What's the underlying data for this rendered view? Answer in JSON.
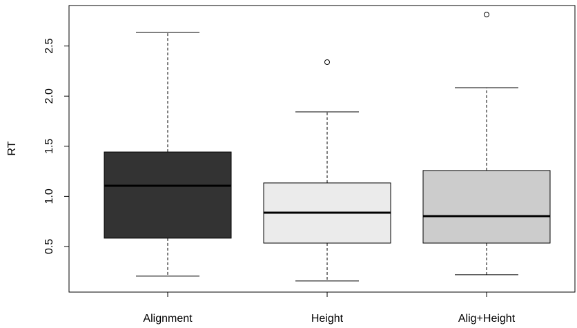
{
  "chart_data": {
    "type": "boxplot",
    "ylabel": "RT",
    "categories": [
      "Alignment",
      "Height",
      "Alig+Height"
    ],
    "boxes": [
      {
        "whisker_low": 0.204,
        "q1": 0.583,
        "median": 1.106,
        "q3": 1.443,
        "whisker_high": 2.635,
        "outliers": [],
        "color": "#333333"
      },
      {
        "whisker_low": 0.156,
        "q1": 0.534,
        "median": 0.837,
        "q3": 1.134,
        "whisker_high": 1.843,
        "outliers": [
          2.339
        ],
        "color": "#ebebeb"
      },
      {
        "whisker_low": 0.218,
        "q1": 0.534,
        "median": 0.803,
        "q3": 1.258,
        "whisker_high": 2.084,
        "outliers": [
          2.814
        ],
        "color": "#cccccc"
      }
    ],
    "ylim": [
      0.045,
      2.904
    ],
    "yticks": [
      0.5,
      {
        "value": 1,
        "label": "1.0"
      },
      1.5,
      {
        "value": 2,
        "label": "2.0"
      },
      2.5
    ]
  }
}
